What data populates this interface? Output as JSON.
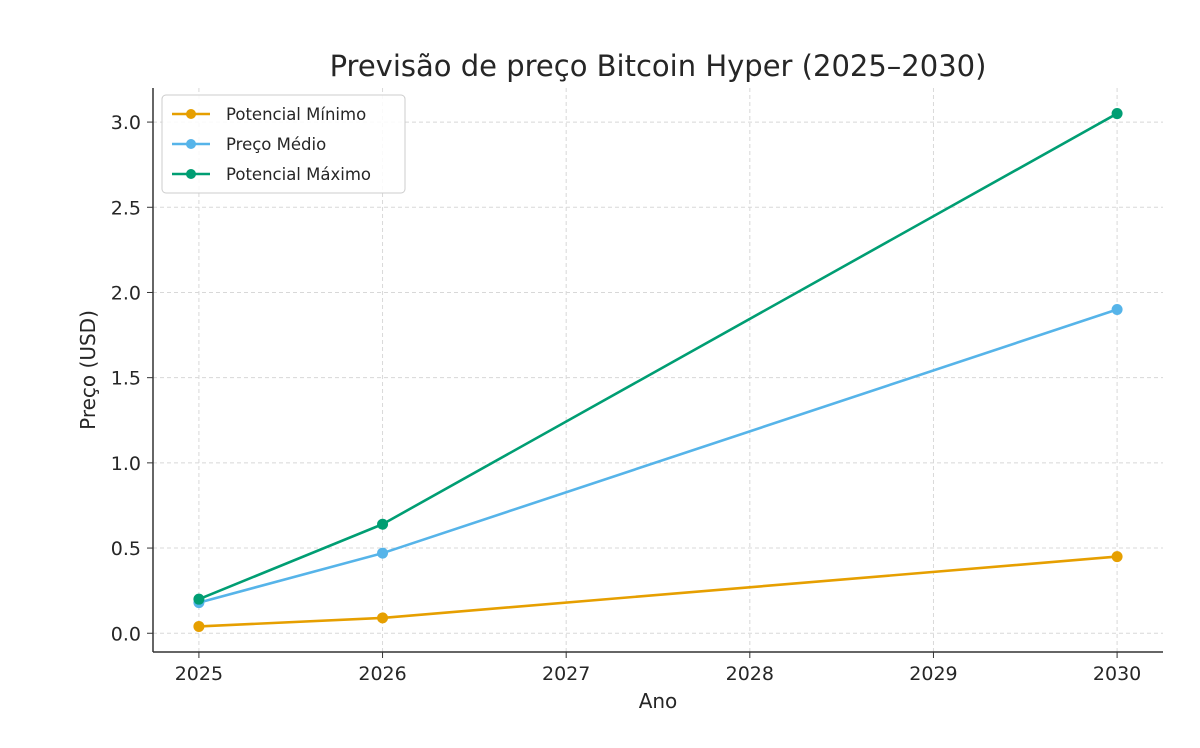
{
  "chart_data": {
    "type": "line",
    "title": "Previsão de preço Bitcoin Hyper (2025–2030)",
    "xlabel": "Ano",
    "ylabel": "Preço (USD)",
    "x": [
      2025,
      2026,
      2030
    ],
    "xticks": [
      "2025",
      "2026",
      "2027",
      "2028",
      "2029",
      "2030"
    ],
    "yticks": [
      "0.0",
      "0.5",
      "1.0",
      "1.5",
      "2.0",
      "2.5",
      "3.0"
    ],
    "xlim": [
      2024.75,
      2030.25
    ],
    "ylim": [
      -0.11,
      3.2
    ],
    "grid": true,
    "legend_position": "top-left",
    "series": [
      {
        "name": "Potencial Mínimo",
        "color": "#E69F00",
        "values": [
          0.04,
          0.09,
          0.45
        ]
      },
      {
        "name": "Preço Médio",
        "color": "#56B4E9",
        "values": [
          0.18,
          0.47,
          1.9
        ]
      },
      {
        "name": "Potencial Máximo",
        "color": "#009E73",
        "values": [
          0.2,
          0.64,
          3.05
        ]
      }
    ]
  }
}
